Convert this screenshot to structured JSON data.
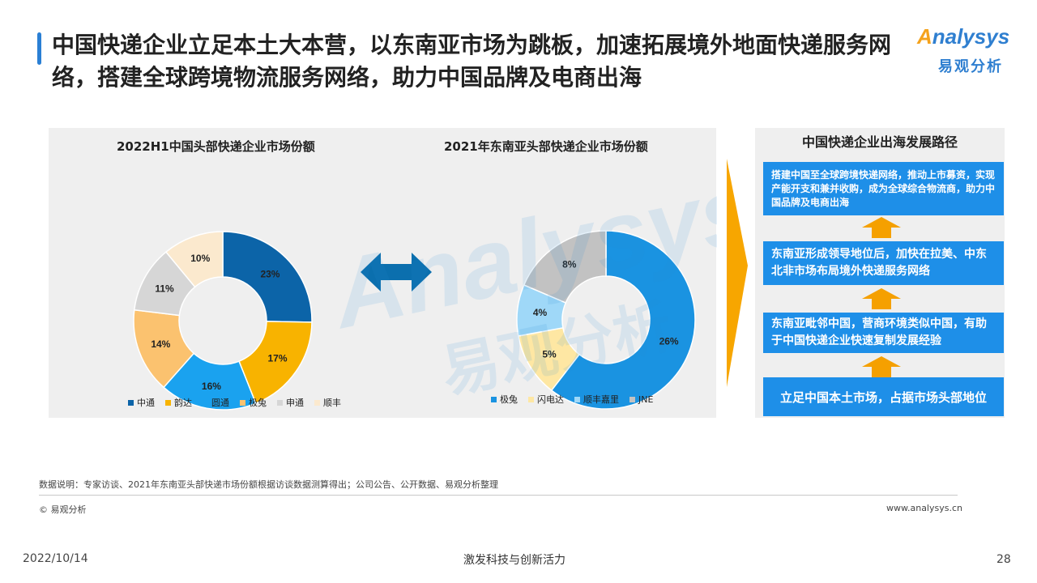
{
  "title": "中国快递企业立足本土大本营，以东南亚市场为跳板，加速拓展境外地面快递服务网络，搭建全球跨境物流服务网络，助力中国品牌及电商出海",
  "logo": {
    "en_a": "A",
    "en_rest": "nalysys",
    "cn": "易观分析"
  },
  "watermark": {
    "en": "Analysys",
    "cn": "易观分析"
  },
  "chart_data": [
    {
      "type": "donut",
      "title": "2022H1中国头部快递企业市场份额",
      "categories": [
        "中通",
        "韵达",
        "圆通",
        "极兔",
        "申通",
        "顺丰"
      ],
      "values": [
        23,
        17,
        16,
        14,
        11,
        10
      ],
      "labels": [
        "23%",
        "17%",
        "16%",
        "14%",
        "11%",
        "10%"
      ],
      "colors": [
        "#0c64a8",
        "#f8b300",
        "#1aa2ef",
        "#fbc26f",
        "#d6d6d6",
        "#fbe9ce"
      ],
      "label_colors": [
        "#222222",
        "#222222",
        "#222222",
        "#222222",
        "#222222",
        "#222222"
      ],
      "legend_labels": [
        "中通",
        "韵达",
        "圆通",
        "极兔",
        "申通",
        "顺丰"
      ],
      "legend_position": "bottom"
    },
    {
      "type": "donut",
      "title": "2021年东南亚头部快递企业市场份额",
      "categories": [
        "极兔",
        "闪电达",
        "顺丰嘉里",
        "JNE"
      ],
      "values": [
        26,
        5,
        4,
        8
      ],
      "labels": [
        "26%",
        "5%",
        "4%",
        "8%"
      ],
      "colors": [
        "#1a93e1",
        "#fee7a3",
        "#9fd8f8",
        "#c2c2c2"
      ],
      "label_colors": [
        "#222222",
        "#222222",
        "#222222",
        "#222222"
      ],
      "legend_labels": [
        "极兔",
        "闪电达",
        "顺丰嘉里",
        "JNE"
      ],
      "legend_position": "bottom"
    }
  ],
  "path": {
    "title": "中国快递企业出海发展路径",
    "steps": [
      "搭建中国至全球跨境快递网络，推动上市募资，实现产能开支和兼并收购，成为全球综合物流商，助力中国品牌及电商出海",
      "东南亚形成领导地位后，加快在拉美、中东北非市场布局境外快递服务网络",
      "东南亚毗邻中国，营商环境类似中国，有助于中国快递企业快速复制发展经验",
      "立足中国本土市场，占据市场头部地位"
    ]
  },
  "footer": {
    "note": "数据说明：专家访谈、2021年东南亚头部快递市场份额根据访谈数据测算得出；公司公告、公开数据、易观分析整理",
    "copyright": "© 易观分析",
    "site": "www.analysys.cn",
    "date": "2022/10/14",
    "slogan": "激发科技与创新活力",
    "page": "28"
  }
}
